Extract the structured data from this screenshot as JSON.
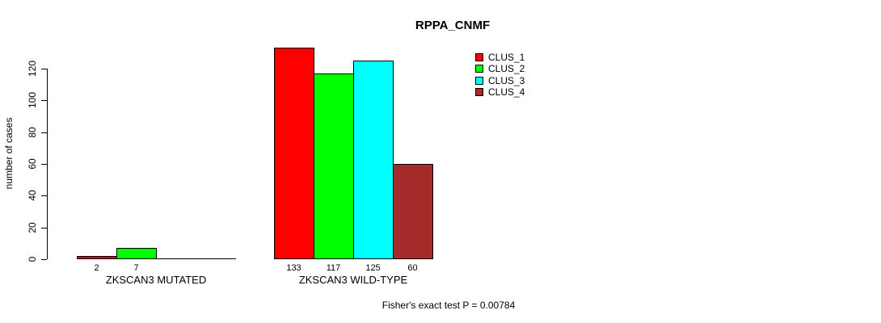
{
  "chart_data": {
    "type": "bar",
    "title": "RPPA_CNMF",
    "ylabel": "number of cases",
    "xlabel": "",
    "yticks": [
      0,
      20,
      40,
      60,
      80,
      100,
      120
    ],
    "ylim": [
      0,
      140
    ],
    "grid": false,
    "legend_position": "top-right",
    "series": [
      "CLUS_1",
      "CLUS_2",
      "CLUS_3",
      "CLUS_4"
    ],
    "colors": [
      "#FF0000",
      "#00FF00",
      "#00FFFF",
      "#A52A2A"
    ],
    "groups": [
      {
        "label": "ZKSCAN3 MUTATED",
        "values": [
          2,
          7,
          0,
          0
        ],
        "bar_labels": [
          "2",
          "7",
          "",
          ""
        ]
      },
      {
        "label": "ZKSCAN3 WILD-TYPE",
        "values": [
          133,
          117,
          125,
          60
        ],
        "bar_labels": [
          "133",
          "117",
          "125",
          "60"
        ]
      }
    ],
    "annotation": "Fisher's exact test P = 0.00784"
  }
}
